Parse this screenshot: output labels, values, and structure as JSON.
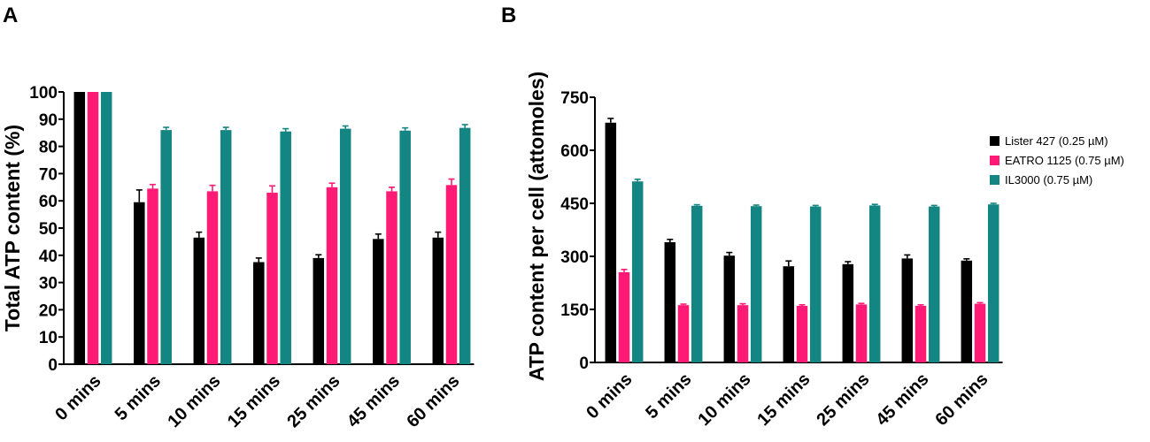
{
  "chart_data": [
    {
      "panel": "A",
      "type": "bar",
      "title": "",
      "xlabel": "",
      "ylabel": "Total ATP content  (%)",
      "ylim": [
        0,
        100
      ],
      "yticks": [
        0,
        10,
        20,
        30,
        40,
        50,
        60,
        70,
        80,
        90,
        100
      ],
      "categories": [
        "0 mins",
        "5 mins",
        "10 mins",
        "15 mins",
        "25 mins",
        "45 mins",
        "60 mins"
      ],
      "series": [
        {
          "name": "Lister 427 (0.25 µM)",
          "color": "#000000",
          "values": [
            100,
            59.5,
            46.5,
            37.5,
            39,
            46,
            46.5
          ],
          "errors": [
            0,
            4.5,
            2,
            1.5,
            1.2,
            1.8,
            2
          ]
        },
        {
          "name": "EATRO 1125 (0.75 µM)",
          "color": "#ff1a75",
          "values": [
            100,
            64.5,
            63.5,
            63,
            65,
            63.5,
            65.8
          ],
          "errors": [
            0,
            1.5,
            2.2,
            2.5,
            1.5,
            1.5,
            2.2
          ]
        },
        {
          "name": "IL3000 (0.75 µM)",
          "color": "#138582",
          "values": [
            100,
            86,
            86,
            85.5,
            86.5,
            85.8,
            86.8
          ],
          "errors": [
            0,
            1,
            1,
            1,
            1,
            1,
            1.2
          ]
        }
      ]
    },
    {
      "panel": "B",
      "type": "bar",
      "title": "",
      "xlabel": "",
      "ylabel": "ATP content per cell (attomoles)",
      "ylim": [
        0,
        750
      ],
      "yticks": [
        0,
        150,
        300,
        450,
        600,
        750
      ],
      "categories": [
        "0 mins",
        "5 mins",
        "10 mins",
        "15 mins",
        "25 mins",
        "45 mins",
        "60 mins"
      ],
      "legend": "right",
      "series": [
        {
          "name": "Lister 427 (0.25 µM)",
          "color": "#000000",
          "values": [
            678,
            340,
            302,
            272,
            278,
            294,
            288
          ],
          "errors": [
            12,
            8,
            9,
            15,
            7,
            10,
            5
          ]
        },
        {
          "name": "EATRO 1125 (0.75 µM)",
          "color": "#ff1a75",
          "values": [
            255,
            162,
            162,
            160,
            164,
            160,
            166
          ],
          "errors": [
            8,
            3,
            4,
            3,
            3,
            3,
            3
          ]
        },
        {
          "name": "IL3000 (0.75 µM)",
          "color": "#138582",
          "values": [
            512,
            443,
            442,
            441,
            444,
            441,
            447
          ],
          "errors": [
            6,
            3,
            3,
            3,
            3,
            3,
            3
          ]
        }
      ]
    }
  ]
}
